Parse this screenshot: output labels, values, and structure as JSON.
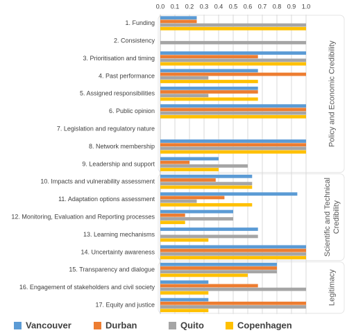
{
  "chart_data": {
    "type": "hbar",
    "categories": [
      "1. Funding",
      "2. Consistency",
      "3. Prioritisation and timing",
      "4. Past performance",
      "5. Assigned responsibilities",
      "6. Public opinion",
      "7. Legislation and regulatory nature",
      "8. Network membership",
      "9. Leadership and support",
      "10. Impacts and vulnerability assessment",
      "11. Adaptation options assessment",
      "12. Monitoring, Evaluation and Reporting processes",
      "13. Learning mechanisms",
      "14. Uncertainty awareness",
      "15. Transparency and dialogue",
      "16. Engagement of stakeholders and civil society",
      "17. Equity and justice"
    ],
    "series": [
      {
        "name": "Vancouver",
        "color": "#5b9bd5",
        "values": [
          0.25,
          0,
          1.0,
          0.67,
          0.67,
          1.0,
          0,
          1.0,
          0.4,
          0.63,
          0.94,
          0.5,
          0.67,
          1.0,
          0.8,
          0.33,
          0.33
        ]
      },
      {
        "name": "Durban",
        "color": "#ed7d31",
        "values": [
          0.25,
          0,
          0.67,
          1.0,
          0.67,
          1.0,
          0,
          1.0,
          0.2,
          0.38,
          0.44,
          0.17,
          0,
          1.0,
          0.8,
          0.67,
          1.0
        ]
      },
      {
        "name": "Quito",
        "color": "#a5a5a5",
        "values": [
          1.0,
          1.0,
          1.0,
          0.33,
          0.33,
          1.0,
          0,
          1.0,
          0.6,
          0.63,
          0.25,
          0.5,
          0.67,
          1.0,
          0.8,
          1.0,
          1.0
        ]
      },
      {
        "name": "Copenhagen",
        "color": "#ffc000",
        "values": [
          1.0,
          0,
          1.0,
          0.67,
          0.67,
          1.0,
          0,
          1.0,
          0.4,
          0.63,
          0.63,
          0.17,
          0.33,
          1.0,
          0.6,
          0.33,
          0.33
        ]
      }
    ],
    "xlim": [
      0,
      1
    ],
    "xticks": [
      {
        "value": 0,
        "label": "0.0"
      },
      0.1,
      0.2,
      0.3,
      0.4,
      0.5,
      0.6,
      0.7,
      0.8,
      0.9,
      {
        "value": 1,
        "label": "1.0"
      }
    ],
    "grid": true,
    "legend": "bottom",
    "groups": [
      {
        "name": "Policy and Economic Credibility",
        "span": [
          0,
          8
        ]
      },
      {
        "name": "Scientific and Technical Credibility",
        "span": [
          9,
          13
        ]
      },
      {
        "name": "Legitimacy",
        "span": [
          14,
          16
        ]
      }
    ]
  }
}
